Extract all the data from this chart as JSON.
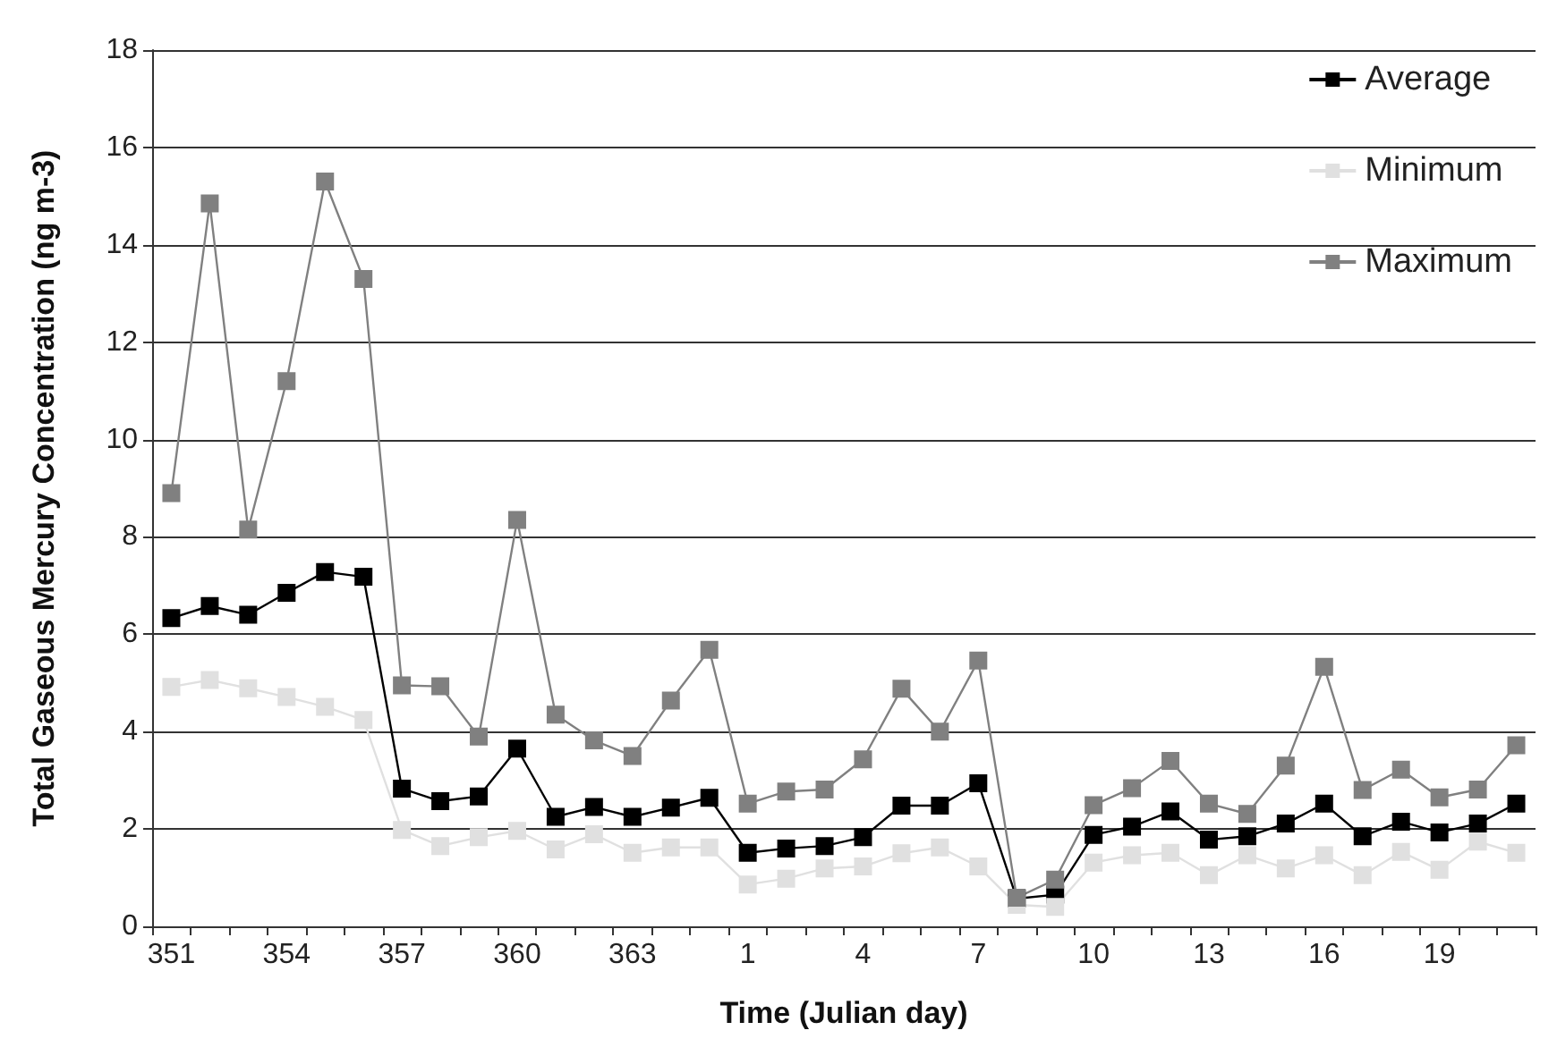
{
  "chart_data": {
    "type": "line",
    "xlabel": "Time (Julian day)",
    "ylabel": "Total Gaseous Mercury Concentration (ng m-3)",
    "categories": [
      "351",
      null,
      null,
      "354",
      null,
      null,
      "357",
      null,
      null,
      "360",
      null,
      null,
      "363",
      null,
      null,
      "1",
      null,
      null,
      "4",
      null,
      null,
      "7",
      null,
      null,
      "10",
      null,
      null,
      "13",
      null,
      null,
      "16",
      null,
      null,
      "19",
      null,
      null
    ],
    "series": [
      {
        "name": "Average",
        "color": "#000000",
        "values": [
          6.33,
          6.58,
          6.4,
          6.85,
          7.28,
          7.18,
          2.83,
          2.57,
          2.67,
          3.65,
          2.25,
          2.45,
          2.25,
          2.44,
          2.64,
          1.51,
          1.6,
          1.65,
          1.83,
          2.48,
          2.48,
          2.94,
          0.57,
          0.65,
          1.88,
          2.05,
          2.36,
          1.78,
          1.85,
          2.11,
          2.52,
          1.85,
          2.15,
          1.93,
          2.11,
          2.52
        ]
      },
      {
        "name": "Minimum",
        "color": "#e0e0e0",
        "values": [
          4.92,
          5.06,
          4.89,
          4.71,
          4.51,
          4.24,
          1.98,
          1.65,
          1.83,
          1.96,
          1.58,
          1.89,
          1.51,
          1.62,
          1.62,
          0.86,
          0.98,
          1.19,
          1.23,
          1.5,
          1.62,
          1.23,
          0.44,
          0.4,
          1.31,
          1.46,
          1.51,
          1.05,
          1.46,
          1.19,
          1.46,
          1.05,
          1.53,
          1.16,
          1.74,
          1.51
        ]
      },
      {
        "name": "Maximum",
        "color": "#808080",
        "values": [
          8.9,
          14.85,
          8.15,
          11.2,
          15.3,
          13.3,
          4.95,
          4.93,
          3.9,
          8.35,
          4.35,
          3.82,
          3.5,
          4.64,
          5.68,
          2.52,
          2.77,
          2.81,
          3.43,
          4.88,
          4.0,
          5.46,
          0.59,
          0.96,
          2.49,
          2.84,
          3.4,
          2.52,
          2.31,
          3.3,
          5.33,
          2.8,
          3.22,
          2.65,
          2.81,
          3.72
        ]
      }
    ],
    "ylim": [
      0,
      18
    ],
    "yticks": [
      0,
      2,
      4,
      6,
      8,
      10,
      12,
      14,
      16,
      18
    ],
    "grid": "y",
    "legend": "top right",
    "marker": "square",
    "line_style": "solid"
  }
}
